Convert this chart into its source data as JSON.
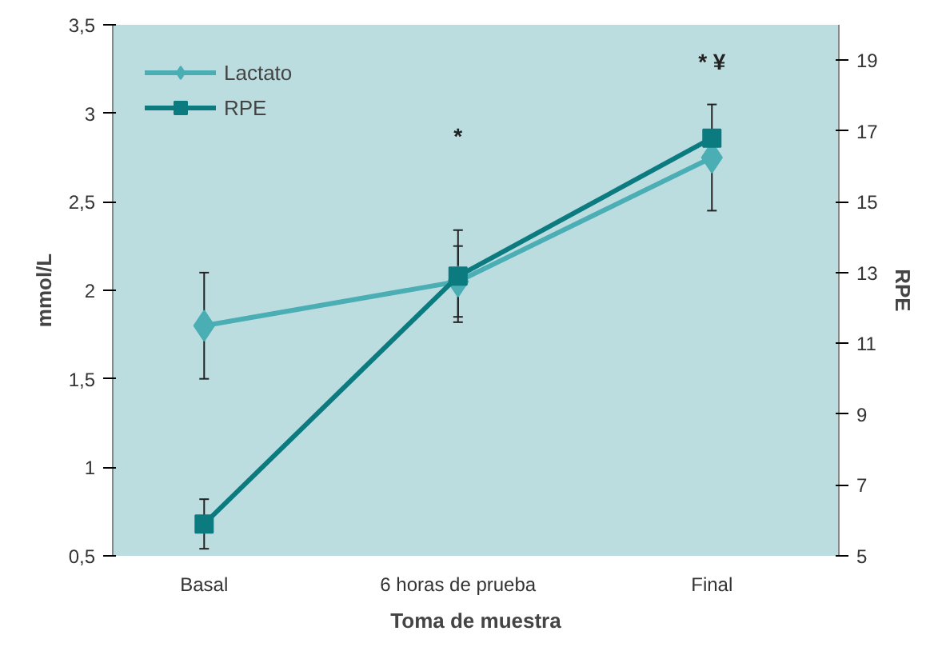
{
  "chart_data": {
    "type": "line",
    "xlabel": "Toma de muestra",
    "ylabel": "mmol/L",
    "y2label": "RPE",
    "categories": [
      "Basal",
      "6 horas de prueba",
      "Final"
    ],
    "series": [
      {
        "name": "Lactato",
        "color": "#4aaeb4",
        "values": [
          1.8,
          2.05,
          2.75
        ],
        "errors": [
          0.3,
          0.2,
          0.3
        ],
        "marker": "diamond"
      },
      {
        "name": "RPE",
        "color": "#0b7b80",
        "values": [
          5.9,
          12.9,
          16.8
        ],
        "errors": [
          0.7,
          1.3,
          null
        ],
        "marker": "square",
        "axis": "y2"
      }
    ],
    "ylim": [
      0.5,
      3.5
    ],
    "yticks": [
      {
        "value": 0.5,
        "label": "0,5"
      },
      1,
      {
        "value": 1.5,
        "label": "1,5"
      },
      2,
      {
        "value": 2.5,
        "label": "2,5"
      },
      3,
      {
        "value": 3.5,
        "label": "3,5"
      }
    ],
    "y2lim": [
      5,
      20
    ],
    "y2ticks": [
      5,
      7,
      9,
      11,
      13,
      15,
      17,
      19
    ],
    "annotations": [
      "*",
      "* ¥"
    ],
    "grid": false,
    "legend": "top left",
    "line_style": "solid"
  }
}
